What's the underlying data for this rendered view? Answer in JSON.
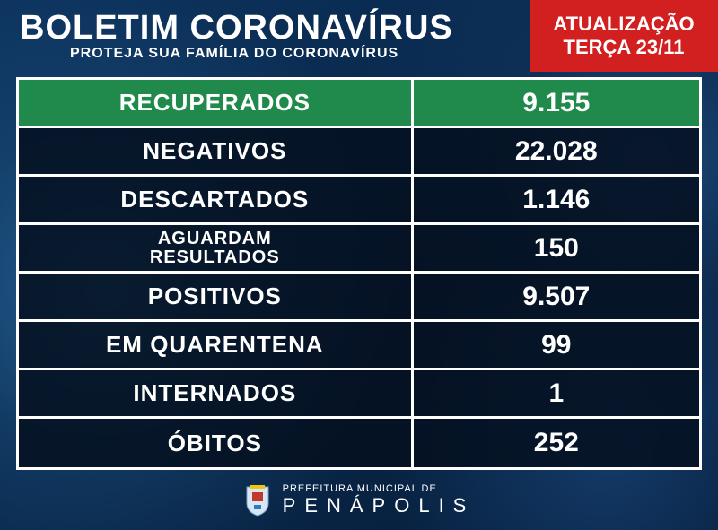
{
  "header": {
    "title": "BOLETIM CORONAVÍRUS",
    "subtitle": "PROTEJA SUA FAMÍLIA DO CORONAVÍRUS"
  },
  "update_box": {
    "line1": "ATUALIZAÇÃO",
    "line2": "TERÇA 23/11",
    "bg_color": "#d21f1f"
  },
  "rows": [
    {
      "label": "RECUPERADOS",
      "value": "9.155",
      "row_class": "green",
      "label_class": ""
    },
    {
      "label": "NEGATIVOS",
      "value": "22.028",
      "row_class": "dark",
      "label_class": ""
    },
    {
      "label": "DESCARTADOS",
      "value": "1.146",
      "row_class": "dark",
      "label_class": ""
    },
    {
      "label": "AGUARDAM\nRESULTADOS",
      "value": "150",
      "row_class": "dark",
      "label_class": "small-label"
    },
    {
      "label": "POSITIVOS",
      "value": "9.507",
      "row_class": "dark",
      "label_class": ""
    },
    {
      "label": "EM QUARENTENA",
      "value": "99",
      "row_class": "dark",
      "label_class": ""
    },
    {
      "label": "INTERNADOS",
      "value": "1",
      "row_class": "dark",
      "label_class": ""
    },
    {
      "label": "ÓBITOS",
      "value": "252",
      "row_class": "dark",
      "label_class": ""
    }
  ],
  "footer": {
    "line1": "PREFEITURA MUNICIPAL DE",
    "line2": "PENÁPOLIS"
  },
  "colors": {
    "green": "#1f8a4c",
    "dark_overlay": "rgba(5,15,30,0.85)",
    "border": "#ffffff",
    "bg_base": "#0a2a50"
  }
}
